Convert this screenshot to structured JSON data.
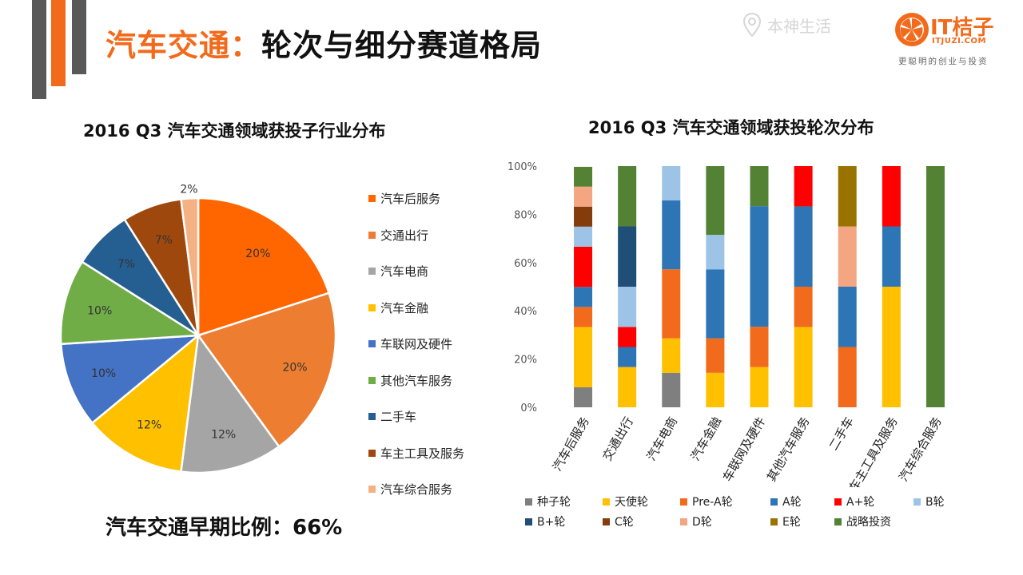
{
  "header": {
    "title_accent": "汽车交通",
    "title_sep": "：",
    "title_main": "轮次与细分赛道格局",
    "location": "本神生活",
    "logo_text": "IT桔子",
    "logo_url": "ITJUZI.COM",
    "logo_slogan": "更聪明的创业与投资",
    "colors": {
      "accent": "#f26a1b",
      "deco_gray": "#595959"
    }
  },
  "footer_note": "汽车交通早期比例：66%",
  "chart_data": [
    {
      "type": "pie",
      "title": "2016 Q3 汽车交通领域获投子行业分布",
      "categories": [
        "汽车后服务",
        "交通出行",
        "汽车电商",
        "汽车金融",
        "车联网及硬件",
        "其他汽车服务",
        "二手车",
        "车主工具及服务",
        "汽车综合服务"
      ],
      "values": [
        20,
        20,
        12,
        12,
        10,
        10,
        7,
        7,
        2
      ],
      "labels": [
        "20%",
        "20%",
        "12%",
        "12%",
        "10%",
        "10%",
        "7%",
        "7%",
        "2%"
      ],
      "colors": [
        "#ff6600",
        "#ed7d31",
        "#a5a5a5",
        "#ffc000",
        "#4472c4",
        "#70ad47",
        "#255e91",
        "#9e480e",
        "#f4b183"
      ]
    },
    {
      "type": "bar",
      "stacked": true,
      "title": "2016 Q3 汽车交通领域获投轮次分布",
      "categories": [
        "汽车后服务",
        "交通出行",
        "汽车电商",
        "汽车金融",
        "车联网及硬件",
        "其他汽车服务",
        "二手车",
        "车主工具及服务",
        "汽车综合服务"
      ],
      "ylim": [
        0,
        100
      ],
      "yticks": [
        "0%",
        "20%",
        "40%",
        "60%",
        "80%",
        "100%"
      ],
      "series": [
        {
          "name": "种子轮",
          "color": "#7f7f7f",
          "values": [
            8.3,
            0,
            14.3,
            0,
            0,
            0,
            0,
            0,
            0
          ]
        },
        {
          "name": "天使轮",
          "color": "#ffc000",
          "values": [
            25,
            16.7,
            14.3,
            14.3,
            16.7,
            33.3,
            0,
            50,
            0
          ]
        },
        {
          "name": "Pre-A轮",
          "color": "#f26a1b",
          "values": [
            8.3,
            0,
            28.6,
            14.3,
            16.7,
            16.7,
            25,
            0,
            0
          ]
        },
        {
          "name": "A轮",
          "color": "#2e75b6",
          "values": [
            8.3,
            8.3,
            28.6,
            28.6,
            50,
            33.3,
            25,
            25,
            0
          ]
        },
        {
          "name": "A+轮",
          "color": "#ff0000",
          "values": [
            16.7,
            8.3,
            0,
            0,
            0,
            16.7,
            0,
            25,
            0
          ]
        },
        {
          "name": "B轮",
          "color": "#9dc3e6",
          "values": [
            8.3,
            16.7,
            14.2,
            14.3,
            0,
            0,
            0,
            0,
            0
          ]
        },
        {
          "name": "B+轮",
          "color": "#1f4e79",
          "values": [
            0,
            25,
            0,
            0,
            0,
            0,
            0,
            0,
            0
          ]
        },
        {
          "name": "C轮",
          "color": "#843c0c",
          "values": [
            8.3,
            0,
            0,
            0,
            0,
            0,
            0,
            0,
            0
          ]
        },
        {
          "name": "D轮",
          "color": "#f4a582",
          "values": [
            8.3,
            0,
            0,
            0,
            0,
            0,
            25,
            0,
            0
          ]
        },
        {
          "name": "E轮",
          "color": "#997300",
          "values": [
            0,
            0,
            0,
            0,
            0,
            0,
            25,
            0,
            0
          ]
        },
        {
          "name": "战略投资",
          "color": "#548235",
          "values": [
            8.2,
            25,
            0,
            28.5,
            16.6,
            0,
            0,
            0,
            100
          ]
        }
      ]
    }
  ]
}
